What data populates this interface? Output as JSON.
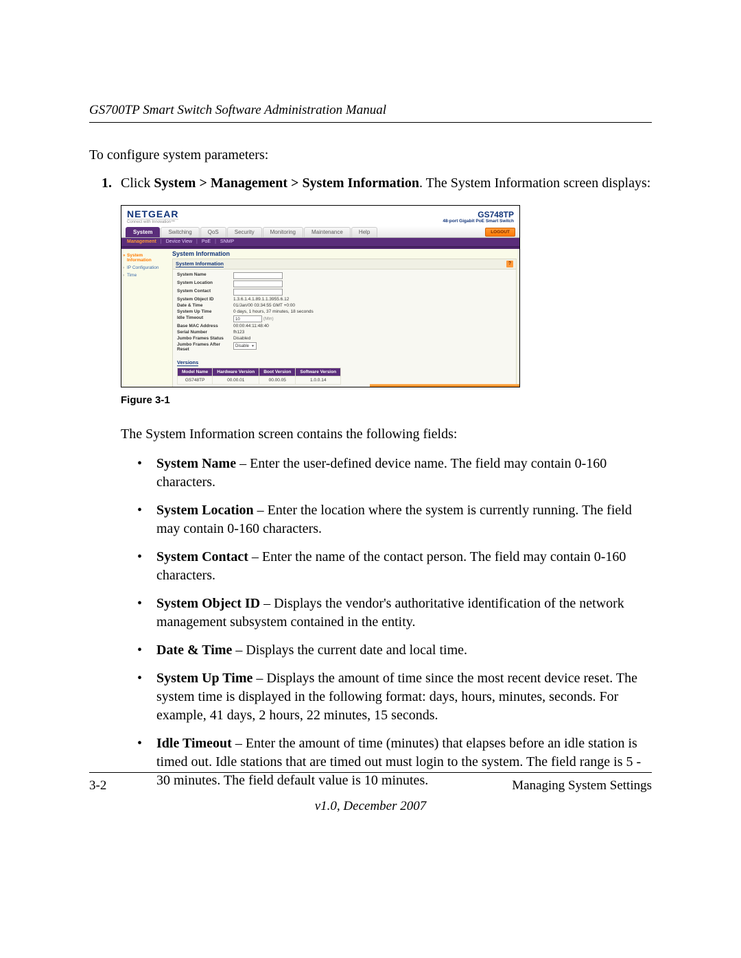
{
  "doc": {
    "header": "GS700TP Smart Switch Software Administration Manual",
    "intro": "To configure system parameters:",
    "step_num": "1.",
    "step_prefix": "Click ",
    "step_bold": "System > Management > System Information",
    "step_suffix": ". The System Information screen displays:",
    "figure_caption": "Figure 3-1",
    "desc": "The System Information screen contains the following fields:",
    "fields": [
      {
        "b": "System Name",
        "t": " – Enter the user-defined device name. The field may contain 0-160 characters."
      },
      {
        "b": "System Location",
        "t": " – Enter the location where the system is currently running. The field may contain 0-160 characters."
      },
      {
        "b": "System Contact",
        "t": " – Enter the name of the contact person. The field may contain 0-160 characters."
      },
      {
        "b": "System Object ID",
        "t": " – Displays the vendor's authoritative identification of the network management subsystem contained in the entity."
      },
      {
        "b": "Date & Time",
        "t": " – Displays the current date and local time."
      },
      {
        "b": "System Up Time",
        "t": " – Displays the amount of time since the most recent device reset. The system time is displayed in the following format: days, hours, minutes, seconds. For example, 41 days, 2 hours, 22 minutes, 15 seconds."
      },
      {
        "b": "Idle Timeout",
        "t": " – Enter the amount of time (minutes) that elapses before an idle station is timed out. Idle stations that are timed out must login to the system. The field range is 5 - 30 minutes. The field default value is 10 minutes."
      }
    ],
    "footer_left": "3-2",
    "footer_right": "Managing System Settings",
    "version": "v1.0, December 2007"
  },
  "shot": {
    "logo": "NETGEAR",
    "tagline": "Connect with Innovation™",
    "model": "GS748TP",
    "model_sub": "48-port Gigabit PoE Smart Switch",
    "tabs": [
      "System",
      "Switching",
      "QoS",
      "Security",
      "Monitoring",
      "Maintenance",
      "Help"
    ],
    "active_tab": "System",
    "logout": "LOGOUT",
    "subtabs": [
      "Management",
      "Device View",
      "PoE",
      "SNMP"
    ],
    "active_subtab": "Management",
    "sidebar": [
      {
        "label": "System Information",
        "selected": true
      },
      {
        "label": "IP Configuration",
        "selected": false
      },
      {
        "label": "Time",
        "selected": false
      }
    ],
    "panel_title": "System Information",
    "panel_head": "System Information",
    "help_icon": "?",
    "rows": [
      {
        "label": "System Name",
        "type": "input"
      },
      {
        "label": "System Location",
        "type": "input"
      },
      {
        "label": "System Contact",
        "type": "input"
      },
      {
        "label": "System Object ID",
        "type": "text",
        "value": "1.3.6.1.4.1.89.1.1.3955.6.12"
      },
      {
        "label": "Date & Time",
        "type": "text",
        "value": "01/Jan/00 03:34:55 GMT +0:00"
      },
      {
        "label": "System Up Time",
        "type": "text",
        "value": "0 days, 1 hours, 37 minutes, 18 seconds"
      },
      {
        "label": "Idle Timeout",
        "type": "input_tiny",
        "value": "10",
        "unit": "(Min)"
      },
      {
        "label": "Base MAC Address",
        "type": "text",
        "value": "00:00:44:11:48:40"
      },
      {
        "label": "Serial Number",
        "type": "text",
        "value": "fh123"
      },
      {
        "label": "Jumbo Frames Status",
        "type": "text",
        "value": "Disabled"
      },
      {
        "label": "Jumbo Frames After Reset",
        "type": "select",
        "value": "Disable"
      }
    ],
    "versions_title": "Versions",
    "versions": {
      "headers": [
        "Model Name",
        "Hardware Version",
        "Boot Version",
        "Software Version"
      ],
      "row": [
        "GS748TP",
        "00.00.01",
        "00.00.05",
        "1.0.0.14"
      ]
    },
    "colors": {
      "page_bg": "#fafbe9",
      "brand_blue": "#12357a",
      "tab_purple": "#5a2d7a",
      "orange": "#ff8a1a"
    }
  }
}
